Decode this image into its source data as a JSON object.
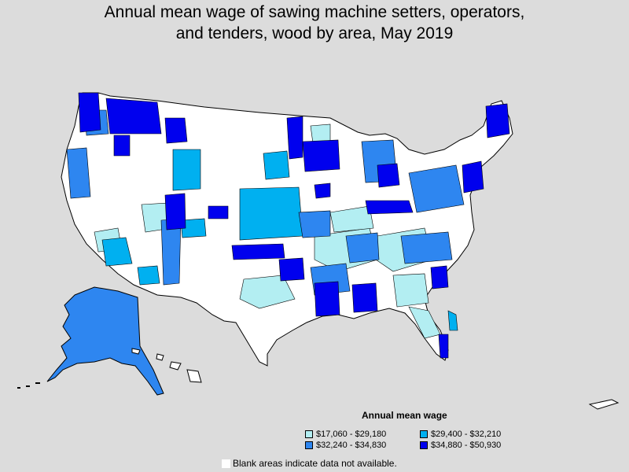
{
  "title": {
    "line1": "Annual mean wage of sawing machine setters, operators,",
    "line2": "and tenders, wood by area, May 2019"
  },
  "legend": {
    "title": "Annual mean wage",
    "items": [
      {
        "label": "$17,060 - $29,180",
        "color": "#b3eef2"
      },
      {
        "label": "$29,400 - $32,210",
        "color": "#00b0f0"
      },
      {
        "label": "$32,240 - $34,830",
        "color": "#2e86f0"
      },
      {
        "label": "$34,880 - $50,930",
        "color": "#0000ee"
      }
    ]
  },
  "blank_note": "Blank areas indicate data not available.",
  "colors": {
    "background": "#dcdcdc",
    "no_data": "#ffffff",
    "border": "#000000"
  }
}
